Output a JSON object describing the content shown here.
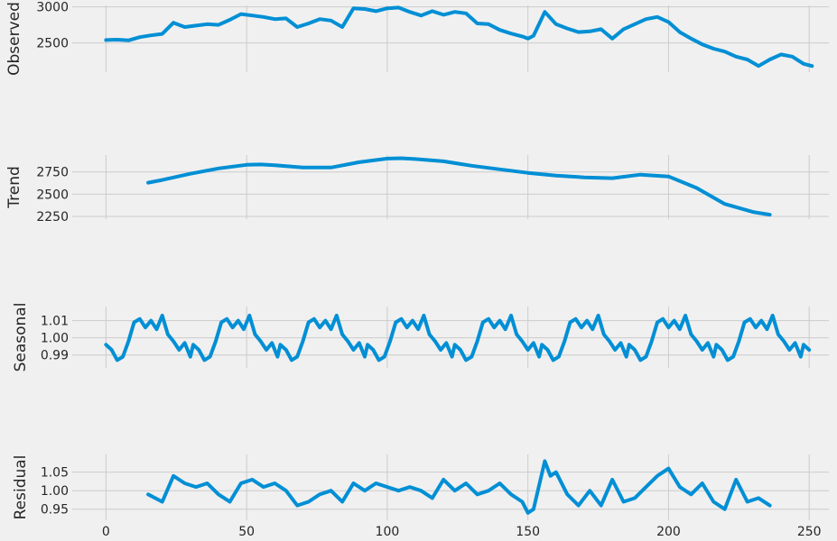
{
  "chart_data": [
    {
      "type": "line",
      "ylabel": "Observed",
      "xlim": [
        -12,
        257
      ],
      "ylim": [
        2095,
        3020
      ],
      "yticks": [
        2500,
        3000
      ],
      "xticks": [
        0,
        50,
        100,
        150,
        200,
        250
      ],
      "show_xtick_labels": false,
      "grid": true,
      "color": "#008fd5",
      "x": [
        0,
        4,
        8,
        12,
        16,
        20,
        24,
        28,
        32,
        36,
        40,
        44,
        48,
        52,
        56,
        60,
        64,
        68,
        72,
        76,
        80,
        84,
        88,
        92,
        96,
        100,
        104,
        108,
        112,
        116,
        120,
        124,
        128,
        132,
        136,
        140,
        144,
        148,
        150,
        152,
        156,
        160,
        164,
        168,
        172,
        176,
        180,
        184,
        188,
        192,
        196,
        200,
        204,
        208,
        212,
        216,
        220,
        224,
        228,
        232,
        236,
        240,
        244,
        248,
        251
      ],
      "y": [
        2540,
        2545,
        2535,
        2580,
        2605,
        2625,
        2780,
        2720,
        2740,
        2760,
        2750,
        2820,
        2900,
        2880,
        2860,
        2830,
        2840,
        2720,
        2770,
        2830,
        2810,
        2720,
        2980,
        2970,
        2940,
        2980,
        2990,
        2930,
        2880,
        2940,
        2890,
        2930,
        2910,
        2770,
        2760,
        2680,
        2630,
        2590,
        2560,
        2600,
        2930,
        2760,
        2700,
        2650,
        2660,
        2690,
        2560,
        2690,
        2760,
        2830,
        2860,
        2790,
        2650,
        2560,
        2480,
        2420,
        2380,
        2310,
        2270,
        2180,
        2270,
        2340,
        2310,
        2210,
        2180
      ]
    },
    {
      "type": "line",
      "ylabel": "Trend",
      "xlim": [
        -12,
        257
      ],
      "ylim": [
        2220,
        2940
      ],
      "yticks": [
        2250,
        2500,
        2750
      ],
      "xticks": [
        0,
        50,
        100,
        150,
        200,
        250
      ],
      "show_xtick_labels": false,
      "grid": true,
      "color": "#008fd5",
      "x": [
        15,
        20,
        30,
        40,
        50,
        55,
        60,
        70,
        80,
        90,
        100,
        105,
        110,
        120,
        130,
        140,
        150,
        160,
        170,
        180,
        190,
        200,
        210,
        220,
        230,
        236
      ],
      "y": [
        2630,
        2660,
        2730,
        2790,
        2830,
        2835,
        2825,
        2800,
        2800,
        2860,
        2900,
        2905,
        2895,
        2870,
        2820,
        2780,
        2740,
        2710,
        2690,
        2680,
        2720,
        2700,
        2570,
        2390,
        2300,
        2270
      ]
    },
    {
      "type": "line",
      "ylabel": "Seasonal",
      "xlim": [
        -12,
        257
      ],
      "ylim": [
        0.9825,
        1.0182
      ],
      "yticks": [
        0.99,
        1.0,
        1.01
      ],
      "xticks": [
        0,
        50,
        100,
        150,
        200,
        250
      ],
      "show_xtick_labels": false,
      "grid": true,
      "color": "#008fd5",
      "period": 31,
      "x": [
        0,
        2,
        4,
        6,
        8,
        10,
        12,
        14,
        16,
        18,
        20,
        22,
        24,
        26,
        28,
        30
      ],
      "y": [
        0.996,
        0.993,
        0.987,
        0.989,
        0.998,
        1.009,
        1.011,
        1.006,
        1.01,
        1.005,
        1.013,
        1.002,
        0.998,
        0.993,
        0.997,
        0.989
      ]
    },
    {
      "type": "line",
      "ylabel": "Residual",
      "xlim": [
        -12,
        257
      ],
      "ylim": [
        0.92,
        1.098
      ],
      "yticks": [
        0.95,
        1.0,
        1.05
      ],
      "xticks": [
        0,
        50,
        100,
        150,
        200,
        250
      ],
      "show_xtick_labels": true,
      "grid": true,
      "color": "#008fd5",
      "x": [
        15,
        20,
        24,
        28,
        32,
        36,
        40,
        44,
        48,
        52,
        56,
        60,
        64,
        68,
        72,
        76,
        80,
        84,
        88,
        92,
        96,
        100,
        104,
        108,
        112,
        116,
        120,
        124,
        128,
        132,
        136,
        140,
        144,
        148,
        150,
        152,
        156,
        158,
        160,
        164,
        168,
        172,
        176,
        180,
        184,
        188,
        192,
        196,
        200,
        204,
        208,
        212,
        216,
        220,
        224,
        228,
        232,
        236
      ],
      "y": [
        0.99,
        0.97,
        1.04,
        1.02,
        1.01,
        1.02,
        0.99,
        0.97,
        1.02,
        1.03,
        1.01,
        1.02,
        1.0,
        0.96,
        0.97,
        0.99,
        1.0,
        0.97,
        1.02,
        1.0,
        1.02,
        1.01,
        1.0,
        1.01,
        1.0,
        0.98,
        1.03,
        1.0,
        1.02,
        0.99,
        1.0,
        1.02,
        0.99,
        0.97,
        0.94,
        0.95,
        1.08,
        1.04,
        1.05,
        0.99,
        0.96,
        1.0,
        0.96,
        1.03,
        0.97,
        0.98,
        1.01,
        1.04,
        1.06,
        1.01,
        0.99,
        1.02,
        0.97,
        0.95,
        1.03,
        0.97,
        0.98,
        0.96
      ]
    }
  ]
}
